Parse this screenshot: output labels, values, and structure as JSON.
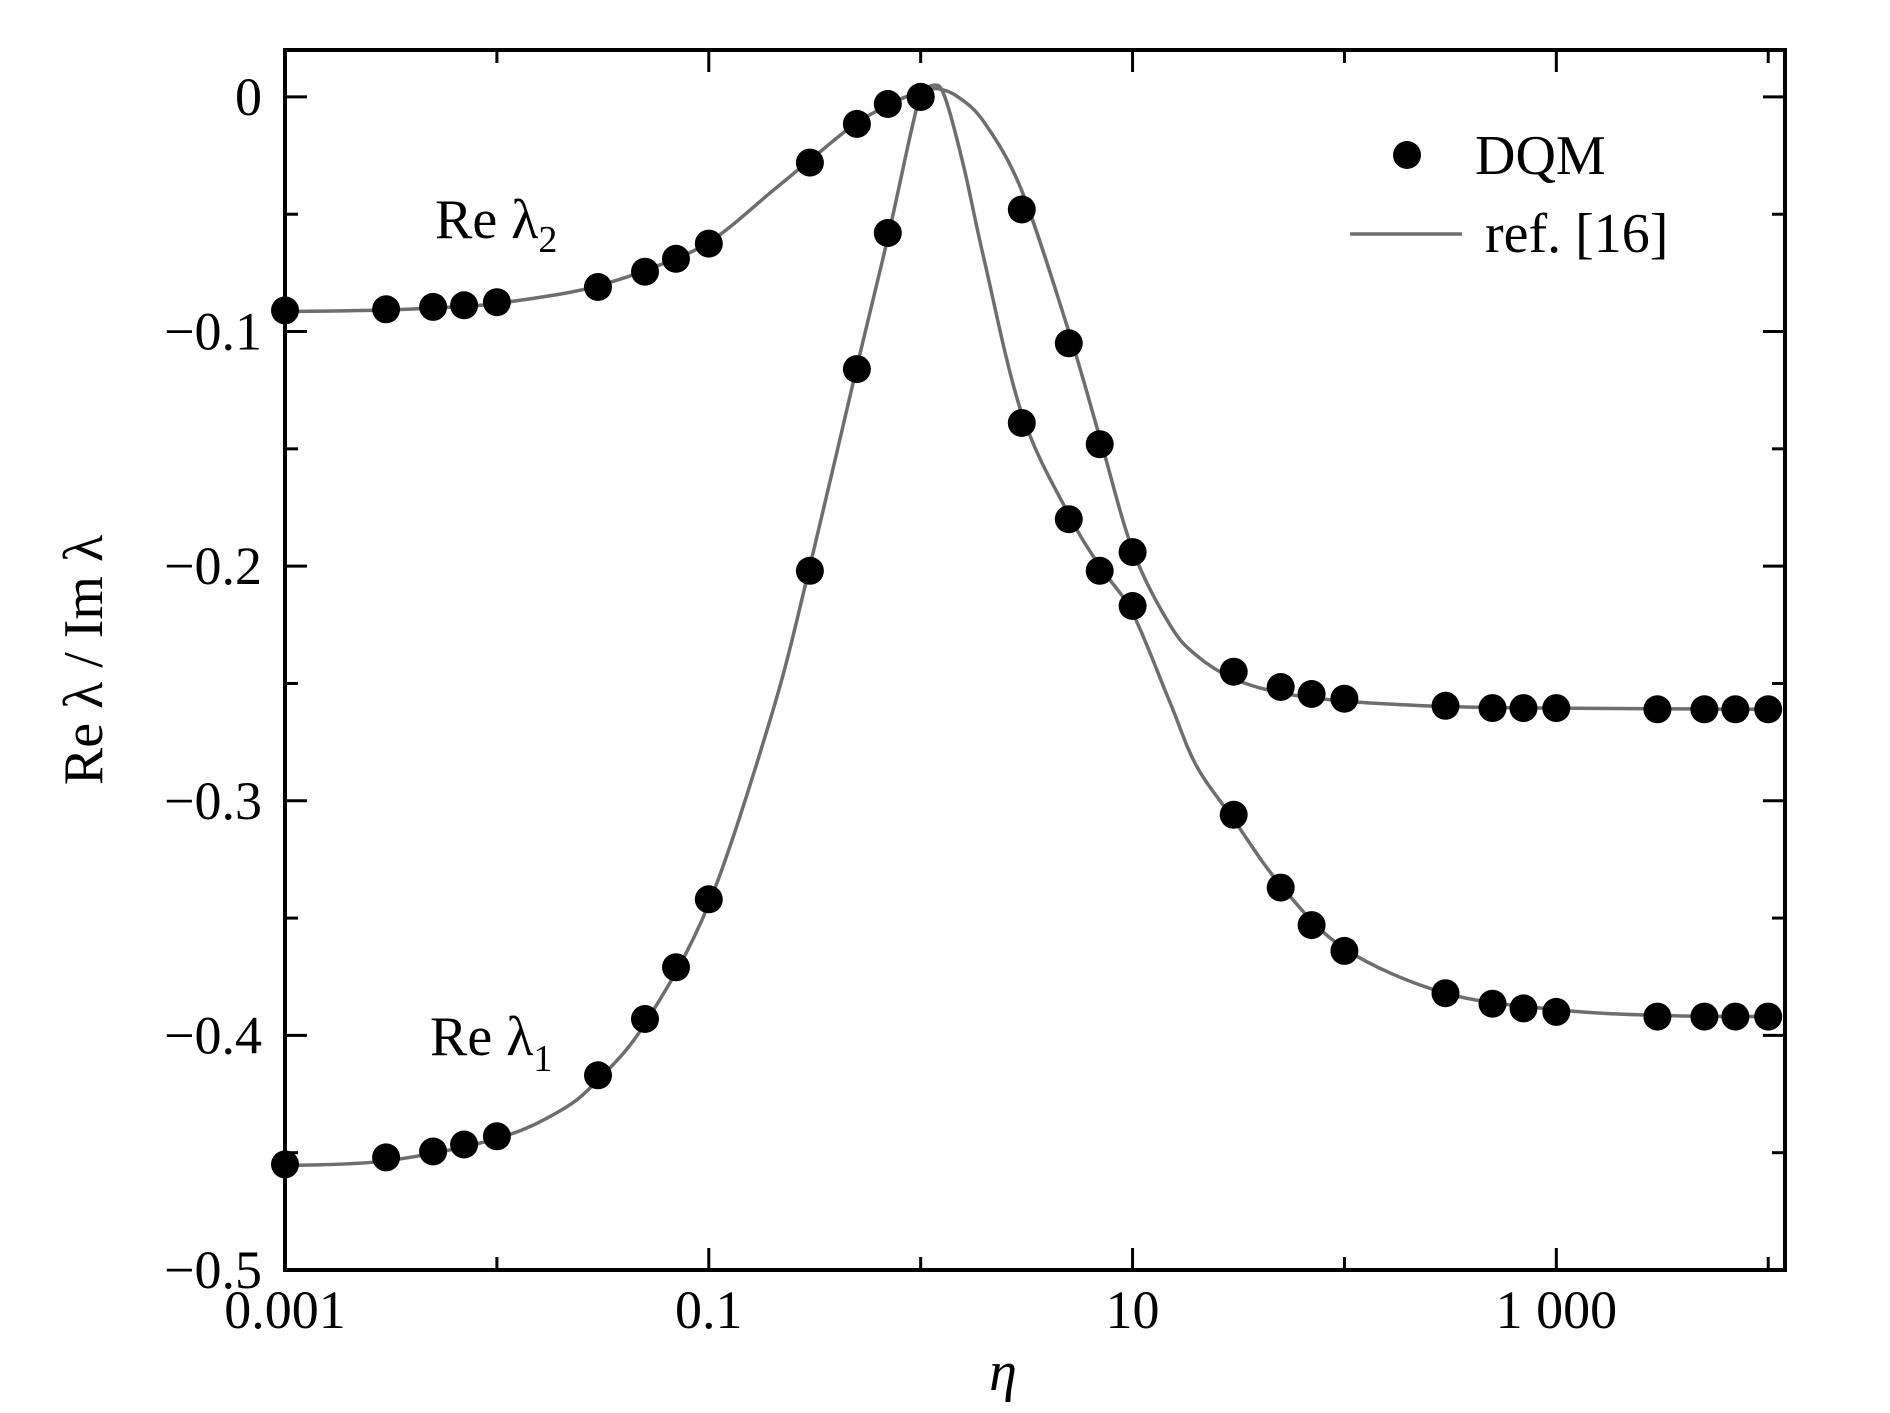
{
  "chart_data": {
    "type": "scatter",
    "xscale": "log",
    "xlim": [
      0.001,
      12000
    ],
    "ylim": [
      -0.5,
      0.02
    ],
    "xlabel": "η",
    "ylabel": "Re λ / Im λ",
    "grid": false,
    "legend_position": "top-right",
    "x_ticks": [
      {
        "value": 0.001,
        "label": "0.001"
      },
      {
        "value": 0.1,
        "label": "0.1"
      },
      {
        "value": 10,
        "label": "10"
      },
      {
        "value": 1000,
        "label": "1 000"
      }
    ],
    "y_ticks": [
      {
        "value": 0,
        "label": "0"
      },
      {
        "value": -0.1,
        "label": "−0.1"
      },
      {
        "value": -0.2,
        "label": "−0.2"
      },
      {
        "value": -0.3,
        "label": "−0.3"
      },
      {
        "value": -0.4,
        "label": "−0.4"
      },
      {
        "value": -0.5,
        "label": "−0.5"
      }
    ],
    "legend": [
      {
        "label": "DQM",
        "kind": "marker"
      },
      {
        "label": "ref. [16]",
        "kind": "line"
      }
    ],
    "colors": {
      "marker": "#000000",
      "line": "#6e6e6e"
    },
    "curve_labels": [
      {
        "base": "Re λ",
        "sub": "2",
        "series": "Re λ2"
      },
      {
        "base": "Re λ",
        "sub": "1",
        "series": "Re λ1"
      }
    ],
    "series": [
      {
        "id": "lambda2",
        "dqm": [
          [
            0.001,
            -0.091
          ],
          [
            0.003,
            -0.0905
          ],
          [
            0.005,
            -0.0895
          ],
          [
            0.007,
            -0.0888
          ],
          [
            0.01,
            -0.0875
          ],
          [
            0.03,
            -0.081
          ],
          [
            0.05,
            -0.0745
          ],
          [
            0.07,
            -0.069
          ],
          [
            0.1,
            -0.0625
          ],
          [
            0.3,
            -0.028
          ],
          [
            0.5,
            -0.0115
          ],
          [
            0.7,
            -0.003
          ],
          [
            1.0,
            0.0
          ],
          [
            3.0,
            -0.048
          ],
          [
            5.0,
            -0.105
          ],
          [
            7.0,
            -0.148
          ],
          [
            10.0,
            -0.194
          ],
          [
            30.0,
            -0.245
          ],
          [
            50.0,
            -0.2515
          ],
          [
            70.0,
            -0.2545
          ],
          [
            100.0,
            -0.2565
          ],
          [
            300.0,
            -0.2595
          ],
          [
            500.0,
            -0.2605
          ],
          [
            700.0,
            -0.2605
          ],
          [
            1000.0,
            -0.2605
          ],
          [
            3000.0,
            -0.261
          ],
          [
            5000.0,
            -0.261
          ],
          [
            7000.0,
            -0.261
          ],
          [
            10000.0,
            -0.261
          ]
        ],
        "ref": [
          [
            0.001,
            -0.0915
          ],
          [
            0.003,
            -0.0908
          ],
          [
            0.007,
            -0.0893
          ],
          [
            0.01,
            -0.088
          ],
          [
            0.02,
            -0.084
          ],
          [
            0.03,
            -0.0805
          ],
          [
            0.05,
            -0.074
          ],
          [
            0.1,
            -0.062
          ],
          [
            0.2,
            -0.04
          ],
          [
            0.3,
            -0.027
          ],
          [
            0.5,
            -0.011
          ],
          [
            0.8,
            -0.001
          ],
          [
            1.0,
            0.002
          ],
          [
            1.2,
            0.0035
          ],
          [
            1.5,
            0.0
          ],
          [
            2.0,
            -0.011
          ],
          [
            3.0,
            -0.04
          ],
          [
            5.0,
            -0.1
          ],
          [
            7.0,
            -0.145
          ],
          [
            10.0,
            -0.193
          ],
          [
            15.0,
            -0.225
          ],
          [
            20.0,
            -0.238
          ],
          [
            30.0,
            -0.248
          ],
          [
            50.0,
            -0.254
          ],
          [
            100.0,
            -0.2575
          ],
          [
            300.0,
            -0.2598
          ],
          [
            1000.0,
            -0.2605
          ],
          [
            10000.0,
            -0.261
          ]
        ]
      },
      {
        "id": "lambda1",
        "dqm": [
          [
            0.001,
            -0.455
          ],
          [
            0.003,
            -0.452
          ],
          [
            0.005,
            -0.4495
          ],
          [
            0.007,
            -0.4465
          ],
          [
            0.01,
            -0.443
          ],
          [
            0.03,
            -0.417
          ],
          [
            0.05,
            -0.393
          ],
          [
            0.07,
            -0.371
          ],
          [
            0.1,
            -0.342
          ],
          [
            0.3,
            -0.202
          ],
          [
            0.5,
            -0.116
          ],
          [
            0.7,
            -0.058
          ],
          [
            1.0,
            0.0
          ],
          [
            3.0,
            -0.139
          ],
          [
            5.0,
            -0.18
          ],
          [
            7.0,
            -0.202
          ],
          [
            10.0,
            -0.217
          ],
          [
            30.0,
            -0.306
          ],
          [
            50.0,
            -0.337
          ],
          [
            70.0,
            -0.353
          ],
          [
            100.0,
            -0.364
          ],
          [
            300.0,
            -0.382
          ],
          [
            500.0,
            -0.3865
          ],
          [
            700.0,
            -0.3885
          ],
          [
            1000.0,
            -0.39
          ],
          [
            3000.0,
            -0.392
          ],
          [
            5000.0,
            -0.392
          ],
          [
            7000.0,
            -0.392
          ],
          [
            10000.0,
            -0.392
          ]
        ],
        "ref": [
          [
            0.001,
            -0.4555
          ],
          [
            0.003,
            -0.4535
          ],
          [
            0.01,
            -0.444
          ],
          [
            0.02,
            -0.432
          ],
          [
            0.03,
            -0.419
          ],
          [
            0.05,
            -0.395
          ],
          [
            0.1,
            -0.344
          ],
          [
            0.2,
            -0.262
          ],
          [
            0.3,
            -0.2
          ],
          [
            0.5,
            -0.115
          ],
          [
            0.7,
            -0.06
          ],
          [
            0.9,
            -0.015
          ],
          [
            1.0,
            0.0
          ],
          [
            1.15,
            0.005
          ],
          [
            1.3,
            0.0
          ],
          [
            1.6,
            -0.03
          ],
          [
            2.0,
            -0.07
          ],
          [
            3.0,
            -0.135
          ],
          [
            5.0,
            -0.178
          ],
          [
            7.0,
            -0.2
          ],
          [
            10.0,
            -0.22
          ],
          [
            15.0,
            -0.258
          ],
          [
            20.0,
            -0.285
          ],
          [
            30.0,
            -0.308
          ],
          [
            50.0,
            -0.336
          ],
          [
            100.0,
            -0.363
          ],
          [
            300.0,
            -0.382
          ],
          [
            1000.0,
            -0.389
          ],
          [
            3000.0,
            -0.3915
          ],
          [
            10000.0,
            -0.392
          ]
        ]
      }
    ]
  }
}
